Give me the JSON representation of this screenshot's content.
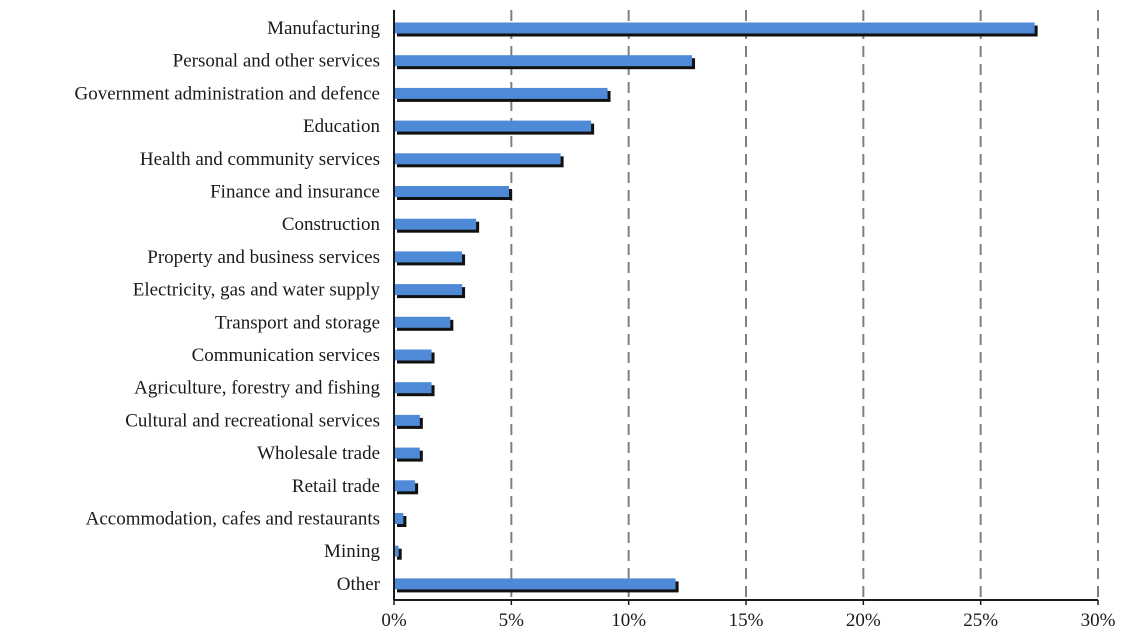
{
  "chart_data": {
    "type": "bar",
    "orientation": "horizontal",
    "title": "",
    "xlabel": "",
    "ylabel": "",
    "categories": [
      "Manufacturing",
      "Personal and other services",
      "Government administration and defence",
      "Education",
      "Health and community services",
      "Finance and insurance",
      "Construction",
      "Property and business services",
      "Electricity, gas and water supply",
      "Transport and storage",
      "Communication services",
      "Agriculture, forestry and fishing",
      "Cultural and recreational services",
      "Wholesale trade",
      "Retail trade",
      "Accommodation, cafes and restaurants",
      "Mining",
      "Other"
    ],
    "values": [
      27.3,
      12.7,
      9.1,
      8.4,
      7.1,
      4.9,
      3.5,
      2.9,
      2.9,
      2.4,
      1.6,
      1.6,
      1.1,
      1.1,
      0.9,
      0.4,
      0.2,
      12.0
    ],
    "xlim": [
      0,
      30
    ],
    "x_ticks": [
      0,
      5,
      10,
      15,
      20,
      25,
      30
    ],
    "x_tick_labels": [
      "0%",
      "5%",
      "10%",
      "15%",
      "20%",
      "25%",
      "30%"
    ],
    "grid": "vertical dashed",
    "legend": "none",
    "bar_color": "#4e8ad8",
    "bar_shadow_color": "#111111",
    "grid_color": "#7f7f7f"
  }
}
